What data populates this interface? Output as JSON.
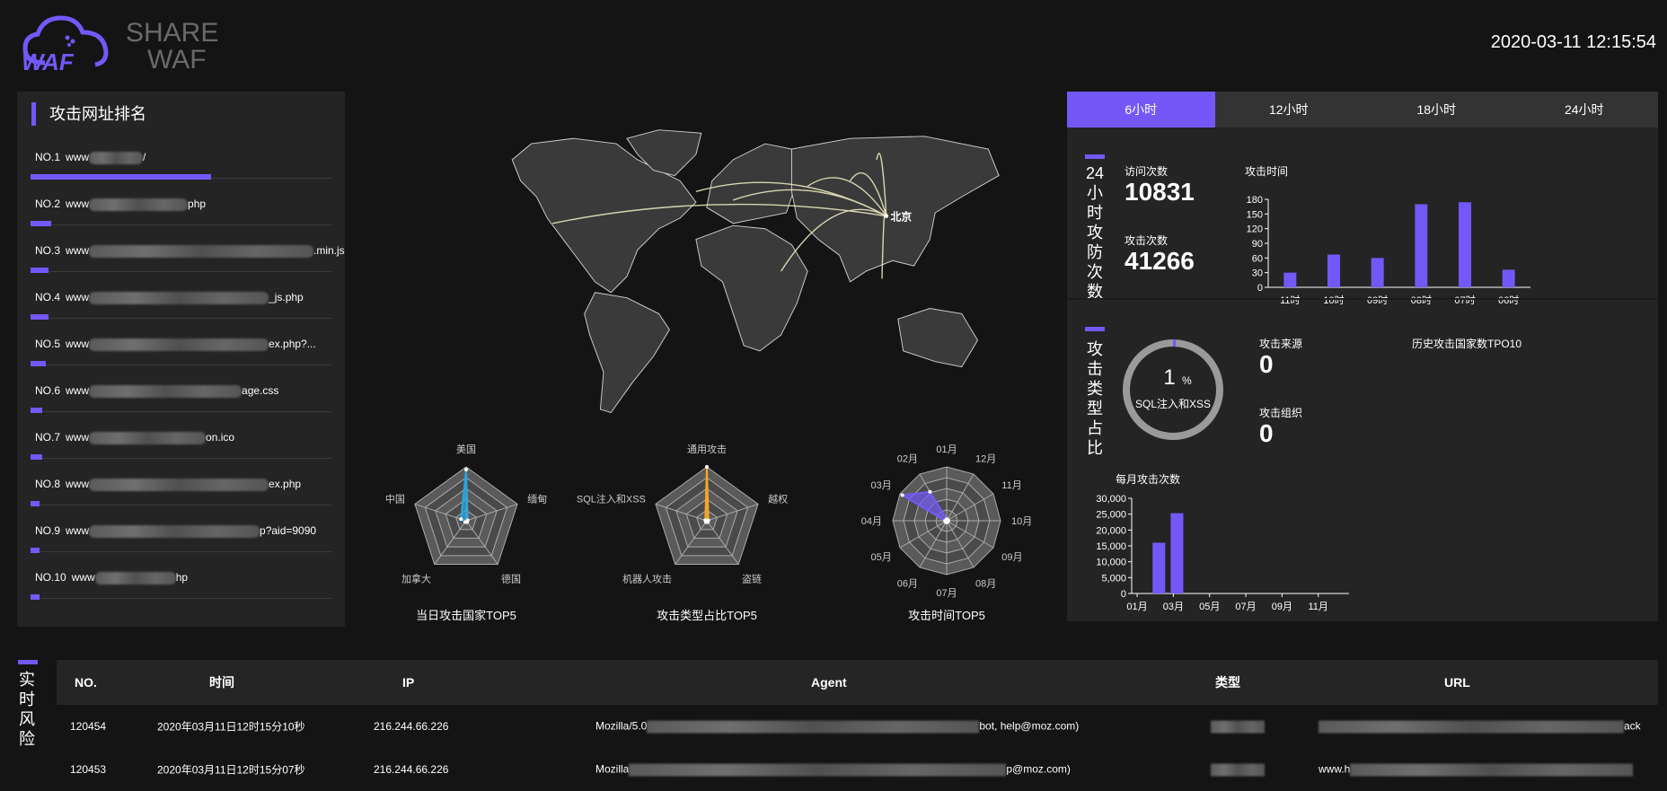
{
  "header": {
    "logo_line1": "SHARE",
    "logo_line2": "WAF",
    "logo_badge": "WAF",
    "datetime": "2020-03-11 12:15:54"
  },
  "ranking": {
    "title": "攻击网址排名",
    "items": [
      {
        "label": "NO.1",
        "prefix": "www",
        "suffix": "/",
        "share": 0.6
      },
      {
        "label": "NO.2",
        "prefix": "www",
        "suffix": "php",
        "share": 0.07
      },
      {
        "label": "NO.3",
        "prefix": "www",
        "suffix": ".min.js",
        "share": 0.06
      },
      {
        "label": "NO.4",
        "prefix": "www",
        "suffix": "_js.php",
        "share": 0.06
      },
      {
        "label": "NO.5",
        "prefix": "www",
        "suffix": "ex.php?...",
        "share": 0.05
      },
      {
        "label": "NO.6",
        "prefix": "www",
        "suffix": "age.css",
        "share": 0.04
      },
      {
        "label": "NO.7",
        "prefix": "www",
        "suffix": "on.ico",
        "share": 0.04
      },
      {
        "label": "NO.8",
        "prefix": "www",
        "suffix": "ex.php",
        "share": 0.03
      },
      {
        "label": "NO.9",
        "prefix": "www",
        "suffix": "p?aid=9090",
        "share": 0.03
      },
      {
        "label": "NO.10",
        "prefix": "www",
        "suffix": "hp",
        "share": 0.03
      }
    ]
  },
  "map": {
    "target_label": "北京",
    "colors": {
      "land": "#3a3a3a",
      "border": "#d0d0d0",
      "flow": "#f4f0c8"
    }
  },
  "chart_data": [
    {
      "type": "radar",
      "title": "当日攻击国家TOP5",
      "axes": [
        "美国",
        "缅甸",
        "德国",
        "加拿大",
        "中国"
      ],
      "values": [
        0.95,
        0.03,
        0.02,
        0.02,
        0.1
      ],
      "color": "#2aa6e0"
    },
    {
      "type": "radar",
      "title": "攻击类型占比TOP5",
      "axes": [
        "通用攻击",
        "越权",
        "盗链",
        "机器人攻击",
        "SQL注入和XSS"
      ],
      "values": [
        1,
        0,
        0,
        0,
        0
      ],
      "color": "#f5a623"
    },
    {
      "type": "radar",
      "title": "攻击时间TOP5",
      "axes": [
        "01月",
        "12月",
        "11月",
        "10月",
        "09月",
        "08月",
        "07月",
        "06月",
        "05月",
        "04月",
        "03月",
        "02月"
      ],
      "values": [
        0,
        0,
        0,
        0,
        0,
        0,
        0,
        0,
        0,
        0,
        0.95,
        0.62
      ],
      "color": "#7458f7"
    },
    {
      "type": "bar",
      "title": "攻击时间",
      "categories": [
        "11时",
        "10时",
        "09时",
        "08时",
        "07时",
        "06时"
      ],
      "values": [
        30,
        67,
        60,
        170,
        174,
        36
      ],
      "ylim": [
        0,
        180
      ],
      "yticks": [
        0,
        30,
        60,
        90,
        120,
        150,
        180
      ],
      "color": "#7458f7"
    },
    {
      "type": "bar",
      "title": "每月攻击次数",
      "categories": [
        "01月",
        "02月",
        "03月",
        "04月",
        "05月",
        "06月",
        "07月",
        "08月",
        "09月",
        "10月",
        "11月",
        "12月"
      ],
      "xtick_labels": [
        "01月",
        "03月",
        "05月",
        "07月",
        "09月",
        "11月"
      ],
      "values": [
        0,
        16000,
        25300,
        0,
        0,
        0,
        0,
        0,
        0,
        0,
        0,
        0
      ],
      "ylim": [
        0,
        30000
      ],
      "yticks": [
        "0",
        "5,000",
        "10,000",
        "15,000",
        "20,000",
        "25,000",
        "30,000"
      ],
      "color": "#7458f7"
    },
    {
      "type": "pie",
      "center_value": "1",
      "center_unit": "%",
      "center_label": "SQL注入和XSS",
      "percent": 1,
      "colors": {
        "fill": "#7458f7",
        "track": "#9a9a9a"
      }
    }
  ],
  "stats": {
    "tabs": [
      "6小时",
      "12小时",
      "18小时",
      "24小时"
    ],
    "active_tab": 0,
    "section1_label": [
      "24",
      "小",
      "时",
      "攻",
      "防",
      "次",
      "数"
    ],
    "visits_label": "访问次数",
    "visits": "10831",
    "attacks_label": "攻击次数",
    "attacks": "41266",
    "section2_label": [
      "攻",
      "击",
      "类",
      "型",
      "占",
      "比"
    ],
    "source_label": "攻击来源",
    "source": "0",
    "org_label": "攻击组织",
    "org": "0",
    "history_title": "历史攻击国家数TPO10"
  },
  "risk": {
    "label": [
      "实",
      "时",
      "风",
      "险"
    ],
    "columns": [
      "NO.",
      "时间",
      "IP",
      "Agent",
      "类型",
      "URL"
    ],
    "rows": [
      {
        "no": "120454",
        "time": "2020年03月11日12时15分10秒",
        "ip": "216.244.66.226",
        "agent_start": "Mozilla/5.0",
        "agent_end": "bot, help@moz.com)",
        "type": "",
        "url_start": "",
        "url_end": "ack"
      },
      {
        "no": "120453",
        "time": "2020年03月11日12时15分07秒",
        "ip": "216.244.66.226",
        "agent_start": "Mozilla",
        "agent_end": "p@moz.com)",
        "type": "",
        "url_start": "www.h",
        "url_end": ""
      }
    ]
  },
  "accent": "#7458f7"
}
